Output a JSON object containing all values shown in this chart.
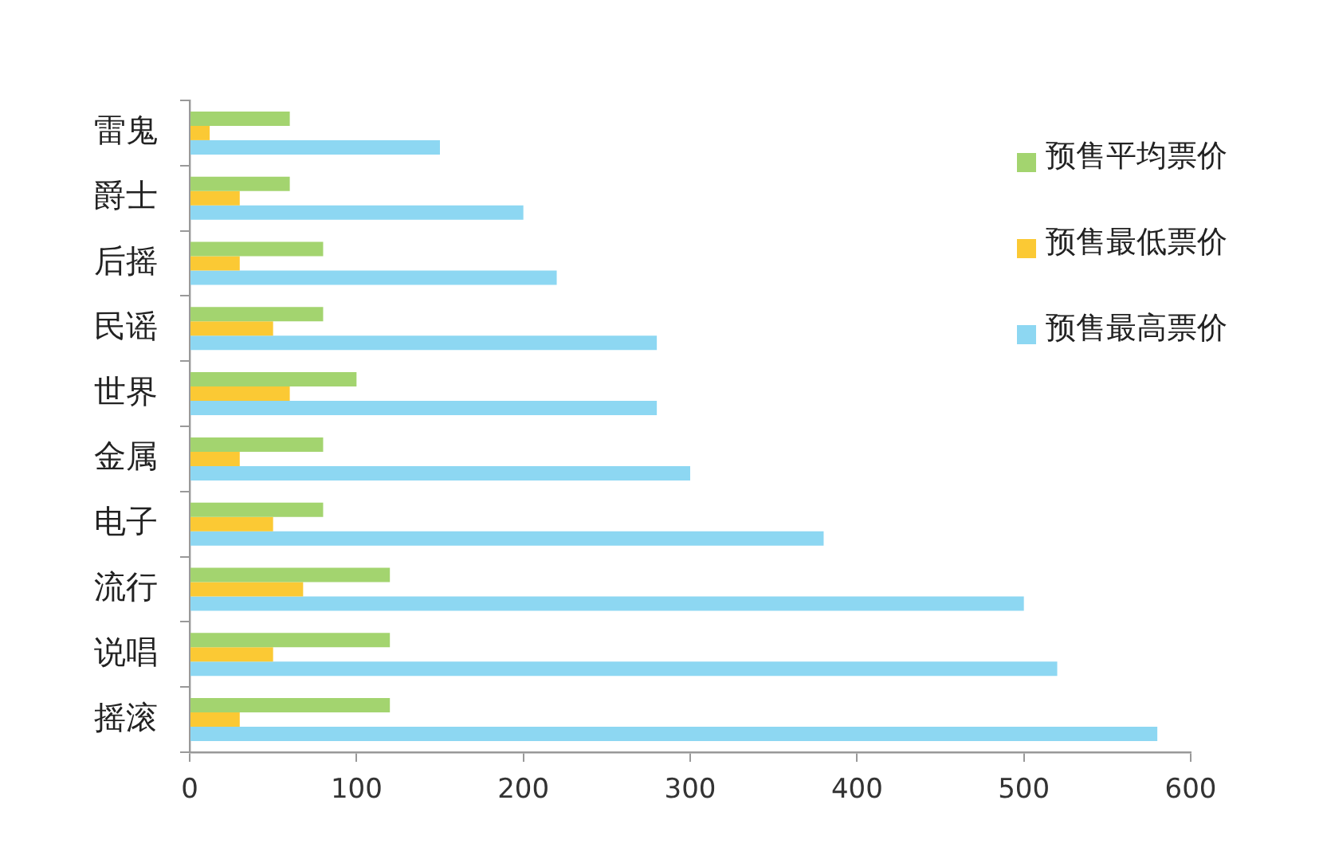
{
  "chart_data": {
    "type": "bar",
    "orientation": "horizontal",
    "categories": [
      "雷鬼",
      "爵士",
      "后摇",
      "民谣",
      "世界",
      "金属",
      "电子",
      "流行",
      "说唱",
      "摇滚"
    ],
    "series": [
      {
        "name": "预售平均票价",
        "color": "#a3d46f",
        "values": [
          60,
          60,
          80,
          80,
          100,
          80,
          80,
          120,
          120,
          120
        ]
      },
      {
        "name": "预售最低票价",
        "color": "#fbc934",
        "values": [
          12,
          30,
          30,
          50,
          60,
          30,
          50,
          68,
          50,
          30
        ]
      },
      {
        "name": "预售最高票价",
        "color": "#8dd7f2",
        "values": [
          150,
          200,
          220,
          280,
          280,
          300,
          380,
          500,
          520,
          580
        ]
      }
    ],
    "xlim": [
      0,
      600
    ],
    "xticks": [
      0,
      100,
      200,
      300,
      400,
      500,
      600
    ],
    "grid": false,
    "legend": "top right"
  }
}
